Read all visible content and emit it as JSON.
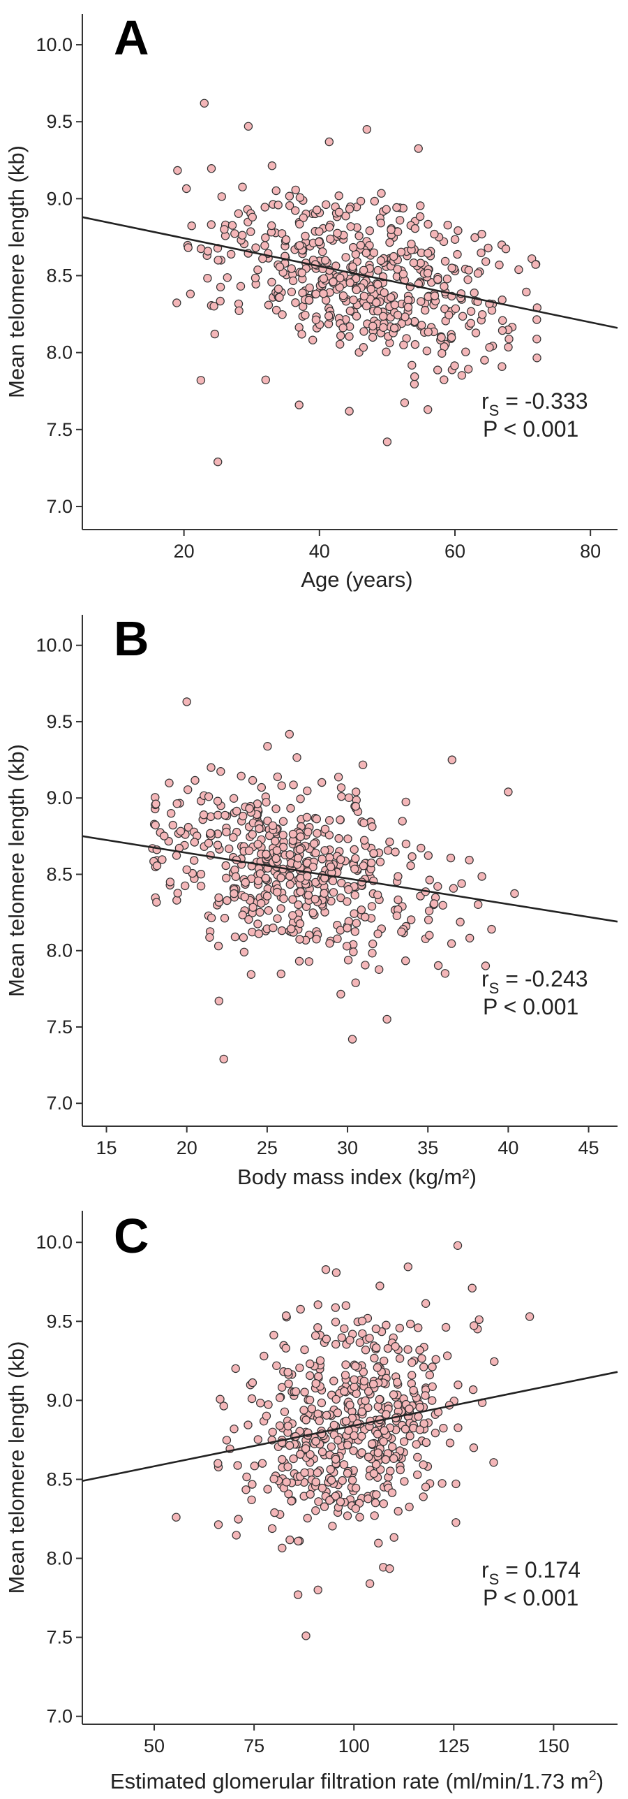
{
  "chart_data": [
    {
      "type": "scatter",
      "panel_label": "A",
      "title": "",
      "xlabel": "Age (years)",
      "ylabel": "Mean telomere length (kb)",
      "xlim": [
        5,
        84
      ],
      "ylim": [
        6.85,
        10.2
      ],
      "x_ticks": [
        20,
        40,
        60,
        80
      ],
      "y_ticks": [
        7.0,
        7.5,
        8.0,
        8.5,
        9.0,
        9.5,
        10.0
      ],
      "y_tick_labels": [
        "7.0",
        "7.5",
        "8.0",
        "8.5",
        "9.0",
        "9.5",
        "10.0"
      ],
      "point_color": "#f4b6b8",
      "point_stroke": "#333333",
      "trend_line": {
        "x": [
          5,
          84
        ],
        "y": [
          8.88,
          8.16
        ]
      },
      "stat_r_label": "r",
      "stat_r_sub": "S",
      "stat_r_value": " = -0.333",
      "stat_p": "P < 0.001",
      "x_center": 46,
      "x_spread": 11,
      "x_min": 19,
      "x_max": 72,
      "y_spread": 0.26,
      "n_points": 520,
      "seed": 11,
      "outliers": [
        [
          23,
          9.62
        ],
        [
          25,
          7.29
        ],
        [
          47,
          9.45
        ],
        [
          29.5,
          9.47
        ],
        [
          50,
          7.42
        ],
        [
          37,
          7.66
        ],
        [
          56,
          7.63
        ],
        [
          22.5,
          7.82
        ]
      ]
    },
    {
      "type": "scatter",
      "panel_label": "B",
      "title": "",
      "xlabel": "Body mass index (kg/m²)",
      "ylabel": "Mean telomere length (kb)",
      "xlim": [
        13.5,
        46.8
      ],
      "ylim": [
        6.85,
        10.2
      ],
      "x_ticks": [
        15,
        20,
        25,
        30,
        35,
        40,
        45
      ],
      "y_ticks": [
        7.0,
        7.5,
        8.0,
        8.5,
        9.0,
        9.5,
        10.0
      ],
      "y_tick_labels": [
        "7.0",
        "7.5",
        "8.0",
        "8.5",
        "9.0",
        "9.5",
        "10.0"
      ],
      "point_color": "#f4b6b8",
      "point_stroke": "#333333",
      "trend_line": {
        "x": [
          13.5,
          46.8
        ],
        "y": [
          8.75,
          8.19
        ]
      },
      "stat_r_label": "r",
      "stat_r_sub": "S",
      "stat_r_value": " = -0.243",
      "stat_p": "P < 0.001",
      "x_center": 26.5,
      "x_spread": 4.2,
      "x_min": 18,
      "x_max": 40.5,
      "y_spread": 0.27,
      "n_points": 520,
      "seed": 23,
      "outliers": [
        [
          20,
          9.63
        ],
        [
          22.3,
          7.29
        ],
        [
          30.3,
          7.42
        ],
        [
          40,
          9.04
        ],
        [
          36.5,
          9.25
        ],
        [
          22,
          7.67
        ]
      ]
    },
    {
      "type": "scatter",
      "panel_label": "C",
      "title": "",
      "xlabel": "Estimated glomerular filtration rate (ml/min/1.73 m",
      "xlabel_sup": "2",
      "xlabel_end": ")",
      "ylabel": "Mean telomere length (kb)",
      "xlim": [
        32,
        166
      ],
      "ylim": [
        6.95,
        10.2
      ],
      "x_ticks": [
        50,
        75,
        100,
        125,
        150
      ],
      "y_ticks": [
        7.0,
        7.5,
        8.0,
        8.5,
        9.0,
        9.5,
        10.0
      ],
      "y_tick_labels": [
        "7.0",
        "7.5",
        "8.0",
        "8.5",
        "9.0",
        "9.5",
        "10.0"
      ],
      "point_color": "#f4b6b8",
      "point_stroke": "#333333",
      "trend_line": {
        "x": [
          32,
          166
        ],
        "y": [
          8.49,
          9.18
        ]
      },
      "stat_r_label": "r",
      "stat_r_sub": "S",
      "stat_r_value": " = 0.174",
      "stat_p": "P < 0.001",
      "x_center": 100,
      "x_spread": 14,
      "x_min": 66,
      "x_max": 135,
      "y_spread": 0.33,
      "n_points": 520,
      "seed": 37,
      "outliers": [
        [
          55.5,
          8.26
        ],
        [
          88,
          7.51
        ],
        [
          126,
          9.98
        ],
        [
          144,
          9.53
        ],
        [
          86,
          7.77
        ],
        [
          91,
          7.8
        ],
        [
          104,
          7.84
        ]
      ]
    }
  ]
}
